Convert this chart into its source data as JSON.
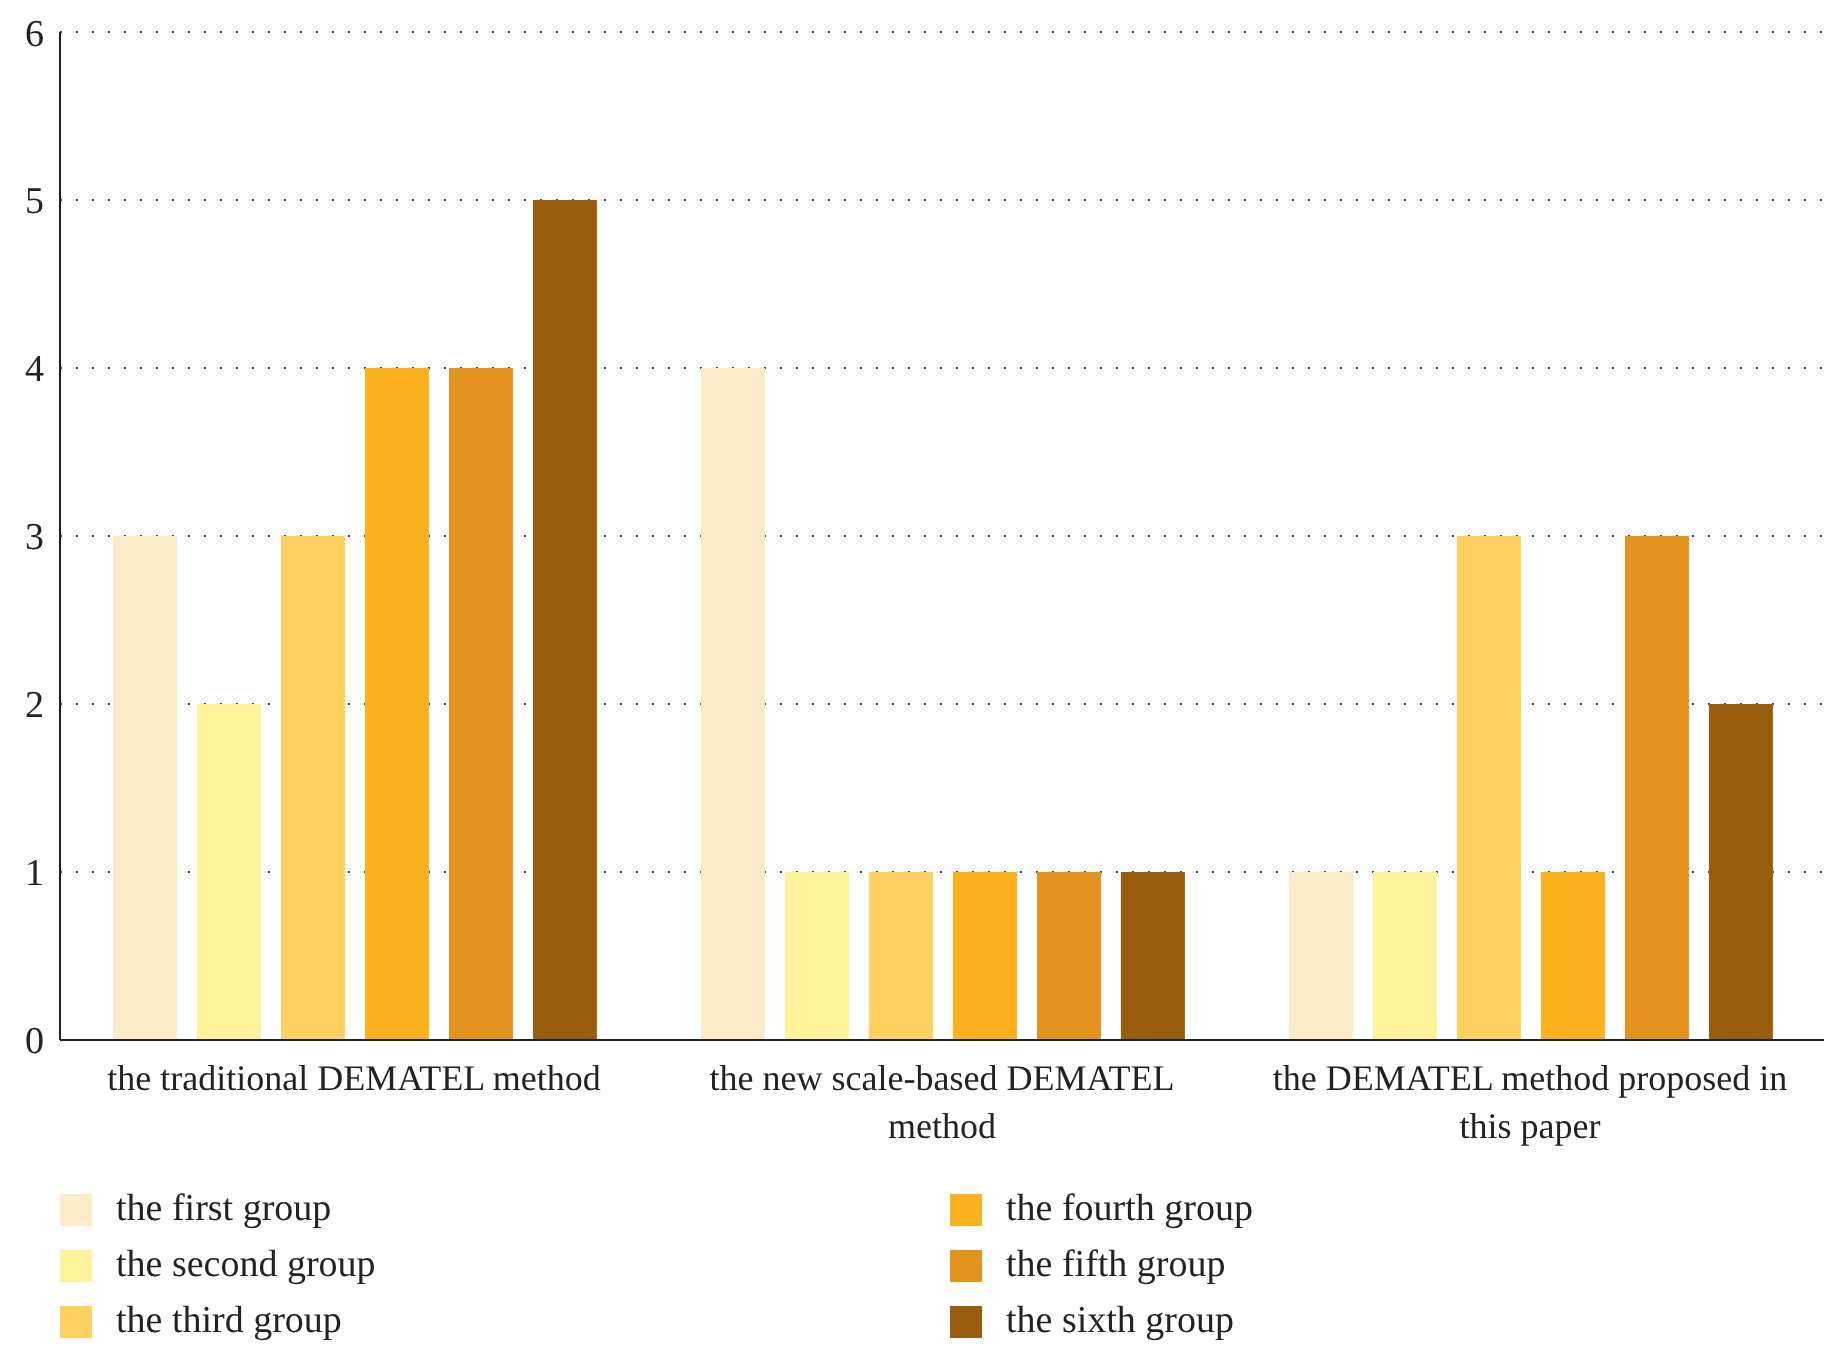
{
  "chart_data": {
    "type": "bar",
    "categories": [
      "the traditional DEMATEL method",
      "the new scale-based DEMATEL method",
      "the DEMATEL method proposed in this paper"
    ],
    "series": [
      {
        "name": "the first group",
        "color": "#fcebc8",
        "values": [
          3,
          4,
          1
        ]
      },
      {
        "name": "the second group",
        "color": "#fef29a",
        "values": [
          2,
          1,
          1
        ]
      },
      {
        "name": "the third group",
        "color": "#fdd062",
        "values": [
          3,
          1,
          3
        ]
      },
      {
        "name": "the fourth group",
        "color": "#fbb21c",
        "values": [
          4,
          1,
          1
        ]
      },
      {
        "name": "the fifth group",
        "color": "#e3921e",
        "values": [
          4,
          1,
          3
        ]
      },
      {
        "name": "the sixth group",
        "color": "#995d0e",
        "values": [
          5,
          1,
          2
        ]
      }
    ],
    "ylim": [
      0,
      6
    ],
    "yticks": [
      0,
      1,
      2,
      3,
      4,
      5,
      6
    ],
    "grid": "y",
    "legend": "bottom"
  }
}
